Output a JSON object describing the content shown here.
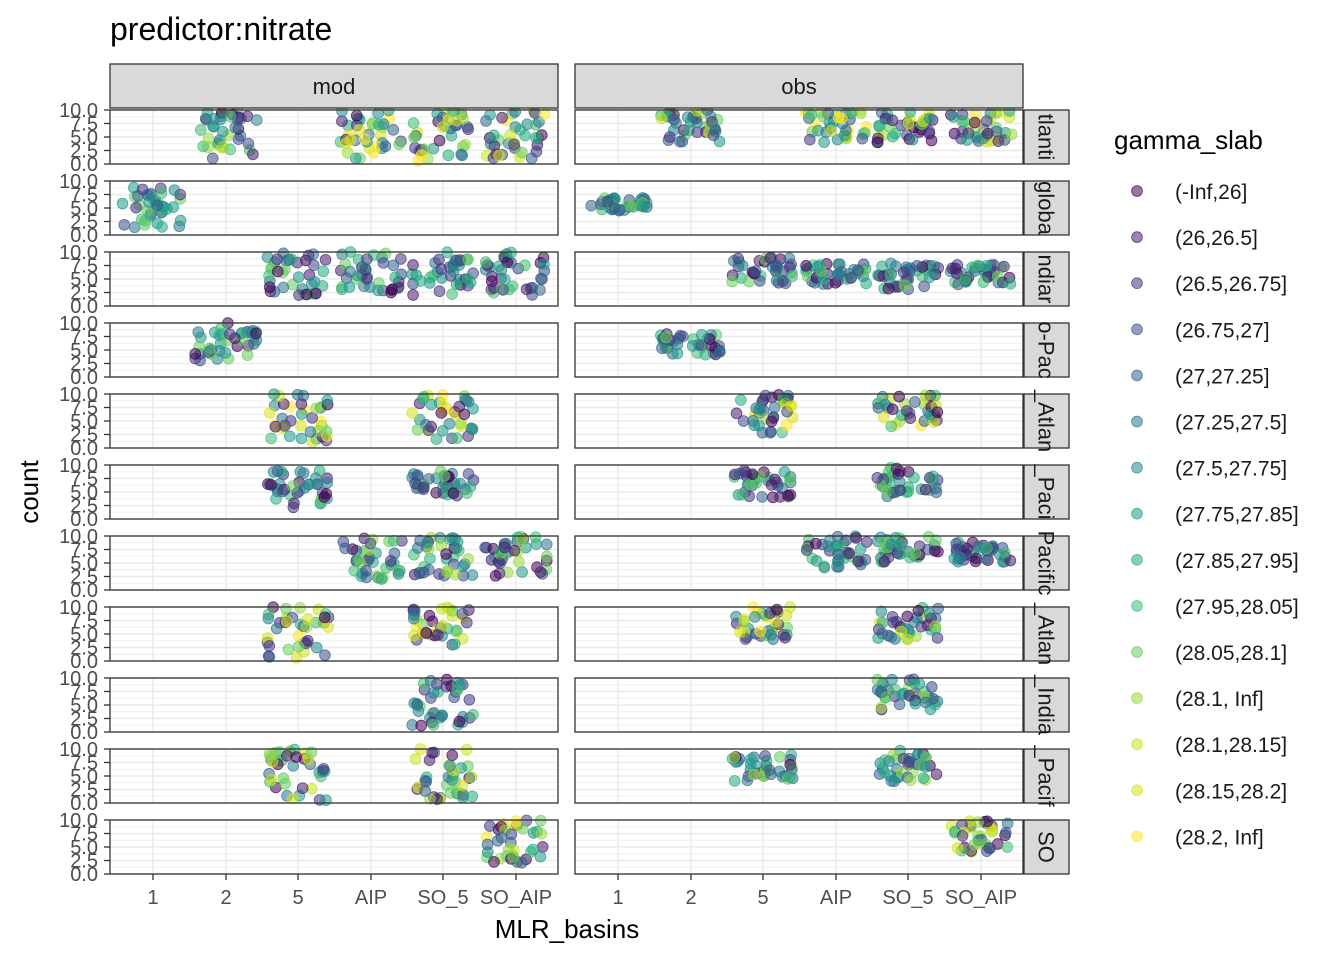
{
  "chart_data": {
    "type": "scatter",
    "title": "predictor:nitrate",
    "xlabel": "MLR_basins",
    "ylabel": "count",
    "x_categories": [
      "1",
      "2",
      "5",
      "AIP",
      "SO_5",
      "SO_AIP"
    ],
    "y_ticks": [
      "0.0",
      "2.5",
      "5.0",
      "7.5",
      "10.0"
    ],
    "ylim": [
      0,
      10
    ],
    "facet_columns": [
      "mod",
      "obs"
    ],
    "facet_rows": [
      "Atlantic",
      "global",
      "Indian",
      "Indo-Pacific",
      "N_Atlantic",
      "N_Pacific",
      "Pacific",
      "S_Atlantic",
      "S_Indian",
      "S_Pacific",
      "SO"
    ],
    "facet_row_labels_visible": [
      "tlanti",
      "globa",
      "ndiar",
      "o-Pac",
      "_Atlan",
      "_Paci",
      "Pacific",
      "_Atlan",
      "_India",
      "_Pacif",
      "SO"
    ],
    "grid": true,
    "point_alpha": 0.55,
    "legend": {
      "title": "gamma_slab",
      "placement": "right",
      "entries": [
        {
          "label": "(-Inf,26]",
          "color": "#440154"
        },
        {
          "label": "(26,26.5]",
          "color": "#481C6E"
        },
        {
          "label": "(26.5,26.75]",
          "color": "#453581"
        },
        {
          "label": "(26.75,27]",
          "color": "#3D4D8A"
        },
        {
          "label": "(27,27.25]",
          "color": "#34618D"
        },
        {
          "label": "(27.25,27.5]",
          "color": "#2B748E"
        },
        {
          "label": "(27.5,27.75]",
          "color": "#24878E"
        },
        {
          "label": "(27.75,27.85]",
          "color": "#1F998A"
        },
        {
          "label": "(27.85,27.95]",
          "color": "#25AC82"
        },
        {
          "label": "(27.95,28.05]",
          "color": "#40BC72"
        },
        {
          "label": "(28.05,28.1]",
          "color": "#67CC5C"
        },
        {
          "label": "(28.1, Inf]",
          "color": "#97D83F"
        },
        {
          "label": "(28.1,28.15]",
          "color": "#CBE11E"
        },
        {
          "label": "(28.15,28.2]",
          "color": "#D7E219"
        },
        {
          "label": "(28.2, Inf]",
          "color": "#FDE725"
        }
      ]
    },
    "panels": [
      {
        "row": "Atlantic",
        "groups": {
          "mod": [
            {
              "x": "2",
              "y": [
                1,
                10
              ],
              "colors": [
                0,
                13
              ]
            },
            {
              "x": "AIP",
              "y": [
                1,
                10
              ],
              "colors": [
                0,
                14
              ]
            },
            {
              "x": "SO_5",
              "y": [
                0.5,
                10
              ],
              "colors": [
                0,
                14
              ]
            },
            {
              "x": "SO_AIP",
              "y": [
                1,
                10
              ],
              "colors": [
                0,
                14
              ]
            }
          ],
          "obs": [
            {
              "x": "2",
              "y": [
                4,
                10
              ],
              "colors": [
                0,
                13
              ]
            },
            {
              "x": "AIP",
              "y": [
                4,
                10
              ],
              "colors": [
                0,
                14
              ]
            },
            {
              "x": "SO_5",
              "y": [
                4,
                10
              ],
              "colors": [
                0,
                14
              ]
            },
            {
              "x": "SO_AIP",
              "y": [
                4,
                10
              ],
              "colors": [
                0,
                14
              ]
            }
          ]
        }
      },
      {
        "row": "global",
        "groups": {
          "mod": [
            {
              "x": "1",
              "y": [
                1,
                9
              ],
              "colors": [
                2,
                10
              ]
            }
          ],
          "obs": [
            {
              "x": "1",
              "y": [
                4.5,
                7
              ],
              "colors": [
                3,
                10
              ]
            }
          ]
        }
      },
      {
        "row": "Indian",
        "groups": {
          "mod": [
            {
              "x": "5",
              "y": [
                2,
                10
              ],
              "colors": [
                0,
                10
              ]
            },
            {
              "x": "AIP",
              "y": [
                2,
                10
              ],
              "colors": [
                0,
                10
              ]
            },
            {
              "x": "SO_5",
              "y": [
                2,
                10
              ],
              "colors": [
                0,
                10
              ]
            },
            {
              "x": "SO_AIP",
              "y": [
                2,
                10
              ],
              "colors": [
                0,
                10
              ]
            }
          ],
          "obs": [
            {
              "x": "5",
              "y": [
                4,
                9
              ],
              "colors": [
                0,
                10
              ]
            },
            {
              "x": "AIP",
              "y": [
                4,
                8
              ],
              "colors": [
                0,
                10
              ]
            },
            {
              "x": "SO_5",
              "y": [
                3,
                8
              ],
              "colors": [
                0,
                10
              ]
            },
            {
              "x": "SO_AIP",
              "y": [
                4,
                8
              ],
              "colors": [
                0,
                10
              ]
            }
          ]
        }
      },
      {
        "row": "Indo-Pacific",
        "groups": {
          "mod": [
            {
              "x": "2",
              "y": [
                3,
                10
              ],
              "colors": [
                0,
                10
              ]
            }
          ],
          "obs": [
            {
              "x": "2",
              "y": [
                4,
                8
              ],
              "colors": [
                0,
                10
              ]
            }
          ]
        }
      },
      {
        "row": "N_Atlantic",
        "groups": {
          "mod": [
            {
              "x": "5",
              "y": [
                1,
                10
              ],
              "colors": [
                0,
                14
              ]
            },
            {
              "x": "SO_5",
              "y": [
                1,
                10
              ],
              "colors": [
                0,
                14
              ]
            }
          ],
          "obs": [
            {
              "x": "5",
              "y": [
                2,
                10
              ],
              "colors": [
                0,
                14
              ]
            },
            {
              "x": "SO_5",
              "y": [
                4,
                10
              ],
              "colors": [
                0,
                14
              ]
            }
          ]
        }
      },
      {
        "row": "N_Pacific",
        "groups": {
          "mod": [
            {
              "x": "5",
              "y": [
                2,
                9
              ],
              "colors": [
                0,
                10
              ]
            },
            {
              "x": "SO_5",
              "y": [
                4,
                9
              ],
              "colors": [
                0,
                10
              ]
            }
          ],
          "obs": [
            {
              "x": "5",
              "y": [
                4,
                9
              ],
              "colors": [
                0,
                10
              ]
            },
            {
              "x": "SO_5",
              "y": [
                4,
                10
              ],
              "colors": [
                0,
                10
              ]
            }
          ]
        }
      },
      {
        "row": "Pacific",
        "groups": {
          "mod": [
            {
              "x": "AIP",
              "y": [
                2,
                10
              ],
              "colors": [
                0,
                11
              ]
            },
            {
              "x": "SO_5",
              "y": [
                2,
                10
              ],
              "colors": [
                0,
                11
              ]
            },
            {
              "x": "SO_AIP",
              "y": [
                2,
                10
              ],
              "colors": [
                0,
                11
              ]
            }
          ],
          "obs": [
            {
              "x": "AIP",
              "y": [
                4,
                10
              ],
              "colors": [
                0,
                10
              ]
            },
            {
              "x": "SO_5",
              "y": [
                5,
                10
              ],
              "colors": [
                0,
                10
              ]
            },
            {
              "x": "SO_AIP",
              "y": [
                5,
                9
              ],
              "colors": [
                0,
                10
              ]
            }
          ]
        }
      },
      {
        "row": "S_Atlantic",
        "groups": {
          "mod": [
            {
              "x": "5",
              "y": [
                0.5,
                10
              ],
              "colors": [
                0,
                14
              ]
            },
            {
              "x": "SO_5",
              "y": [
                3,
                10
              ],
              "colors": [
                0,
                14
              ]
            }
          ],
          "obs": [
            {
              "x": "5",
              "y": [
                4,
                10
              ],
              "colors": [
                0,
                14
              ]
            },
            {
              "x": "SO_5",
              "y": [
                4,
                10
              ],
              "colors": [
                0,
                14
              ]
            }
          ]
        }
      },
      {
        "row": "S_Indian",
        "groups": {
          "mod": [
            {
              "x": "SO_5",
              "y": [
                1,
                10
              ],
              "colors": [
                0,
                10
              ]
            }
          ],
          "obs": [
            {
              "x": "SO_5",
              "y": [
                4,
                10
              ],
              "colors": [
                0,
                11
              ]
            }
          ]
        }
      },
      {
        "row": "S_Pacific",
        "groups": {
          "mod": [
            {
              "x": "5",
              "y": [
                0.5,
                10
              ],
              "colors": [
                0,
                13
              ]
            },
            {
              "x": "SO_5",
              "y": [
                0.5,
                10
              ],
              "colors": [
                0,
                13
              ]
            }
          ],
          "obs": [
            {
              "x": "5",
              "y": [
                4,
                9
              ],
              "colors": [
                0,
                11
              ]
            },
            {
              "x": "SO_5",
              "y": [
                4,
                10
              ],
              "colors": [
                0,
                11
              ]
            }
          ]
        }
      },
      {
        "row": "SO",
        "groups": {
          "mod": [
            {
              "x": "SO_AIP",
              "y": [
                2,
                10
              ],
              "colors": [
                0,
                14
              ]
            }
          ],
          "obs": [
            {
              "x": "SO_AIP",
              "y": [
                4,
                10
              ],
              "colors": [
                0,
                14
              ]
            }
          ]
        }
      }
    ]
  }
}
